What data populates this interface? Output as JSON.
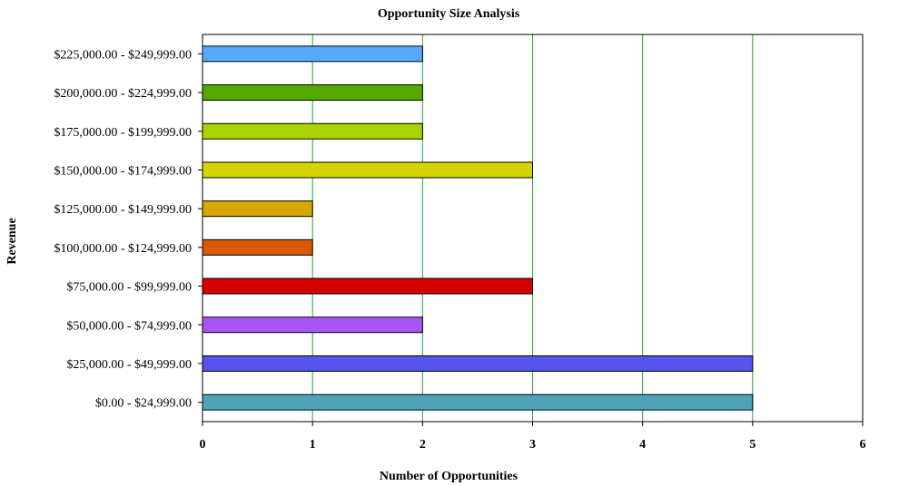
{
  "chart_data": {
    "type": "bar",
    "orientation": "horizontal",
    "title": "Opportunity Size Analysis",
    "xlabel": "Number of Opportunities",
    "ylabel": "Revenue",
    "xlim": [
      0,
      6
    ],
    "xticks": [
      0,
      1,
      2,
      3,
      4,
      5,
      6
    ],
    "grid": "vertical",
    "grid_color": "#22aa22",
    "categories": [
      "$0.00 - $24,999.00",
      "$25,000.00 - $49,999.00",
      "$50,000.00 - $74,999.00",
      "$75,000.00 - $99,999.00",
      "$100,000.00 - $124,999.00",
      "$125,000.00 - $149,999.00",
      "$150,000.00 - $174,999.00",
      "$175,000.00 - $199,999.00",
      "$200,000.00 - $224,999.00",
      "$225,000.00 - $249,999.00"
    ],
    "values": [
      5,
      5,
      2,
      3,
      1,
      1,
      3,
      2,
      2,
      2
    ],
    "colors": [
      "#4fa3b8",
      "#5555ee",
      "#a855f7",
      "#d40000",
      "#d95a00",
      "#d9a800",
      "#d4d400",
      "#aad400",
      "#55a800",
      "#55aaff"
    ]
  }
}
